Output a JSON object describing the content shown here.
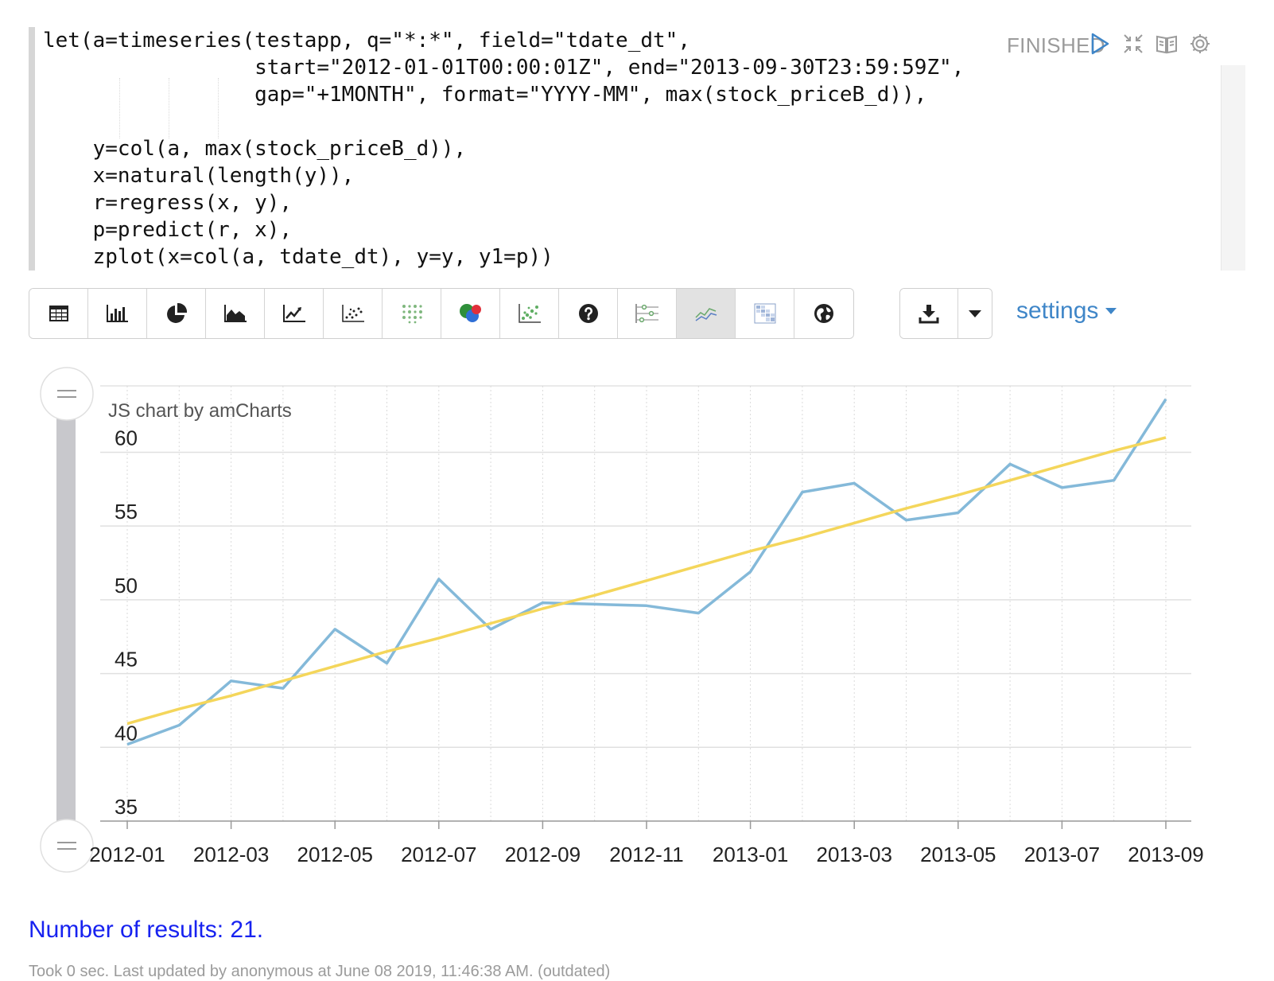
{
  "paragraph": {
    "code_lines": [
      "let(a=timeseries(testapp, q=\"*:*\", field=\"tdate_dt\",",
      "                 start=\"2012-01-01T00:00:01Z\", end=\"2013-09-30T23:59:59Z\",",
      "                 gap=\"+1MONTH\", format=\"YYYY-MM\", max(stock_priceB_d)),",
      "",
      "    y=col(a, max(stock_priceB_d)),",
      "    x=natural(length(y)),",
      "    r=regress(x, y),",
      "    p=predict(r, x),",
      "    zplot(x=col(a, tdate_dt), y=y, y1=p))"
    ],
    "status": "FINISHED",
    "controls": [
      "run-icon",
      "collapse-icon",
      "book-icon",
      "gear-icon"
    ]
  },
  "toolbar": {
    "buttons": [
      {
        "name": "table-icon",
        "active": false
      },
      {
        "name": "bar-chart-icon",
        "active": false
      },
      {
        "name": "pie-chart-icon",
        "active": false
      },
      {
        "name": "area-chart-icon",
        "active": false
      },
      {
        "name": "line-chart-icon",
        "active": false
      },
      {
        "name": "scatter-chart-icon",
        "active": false
      },
      {
        "name": "dot-grid-icon",
        "active": false
      },
      {
        "name": "venn-icon",
        "active": false
      },
      {
        "name": "bubble-scatter-icon",
        "active": false
      },
      {
        "name": "help-icon",
        "active": false
      },
      {
        "name": "sliders-icon",
        "active": false
      },
      {
        "name": "multi-line-icon",
        "active": true
      },
      {
        "name": "heatmap-icon",
        "active": false
      },
      {
        "name": "globe-icon",
        "active": false
      }
    ],
    "download_icon": "download-icon",
    "caret_icon": "caret-down-icon",
    "settings_label": "settings"
  },
  "chart_data": {
    "type": "line",
    "watermark": "JS chart by amCharts",
    "x": [
      "2012-01",
      "2012-02",
      "2012-03",
      "2012-04",
      "2012-05",
      "2012-06",
      "2012-07",
      "2012-08",
      "2012-09",
      "2012-10",
      "2012-11",
      "2012-12",
      "2013-01",
      "2013-02",
      "2013-03",
      "2013-04",
      "2013-05",
      "2013-06",
      "2013-07",
      "2013-08",
      "2013-09"
    ],
    "x_tick_labels": [
      "2012-01",
      "2012-03",
      "2012-05",
      "2012-07",
      "2012-09",
      "2012-11",
      "2013-01",
      "2013-03",
      "2013-05",
      "2013-07",
      "2013-09"
    ],
    "y_ticks": [
      35,
      40,
      45,
      50,
      55,
      60
    ],
    "ylim": [
      35,
      64.5
    ],
    "series": [
      {
        "values": [
          40.2,
          41.5,
          44.5,
          44.0,
          48.0,
          45.7,
          51.4,
          48.0,
          49.8,
          49.7,
          49.6,
          49.1,
          51.9,
          57.3,
          57.9,
          55.4,
          55.9,
          59.2,
          57.6,
          58.1,
          63.6
        ],
        "color": "#84b9d9"
      },
      {
        "values": [
          41.6,
          42.6,
          43.5,
          44.5,
          45.5,
          46.5,
          47.4,
          48.4,
          49.4,
          50.3,
          51.3,
          52.3,
          53.3,
          54.2,
          55.2,
          56.2,
          57.1,
          58.1,
          59.1,
          60.1,
          61.0
        ],
        "color": "#f4d65b"
      }
    ],
    "grid": true
  },
  "results": {
    "text": "Number of results: 21."
  },
  "footer": {
    "text": "Took 0 sec. Last updated by anonymous at June 08 2019, 11:46:38 AM. (outdated)"
  }
}
